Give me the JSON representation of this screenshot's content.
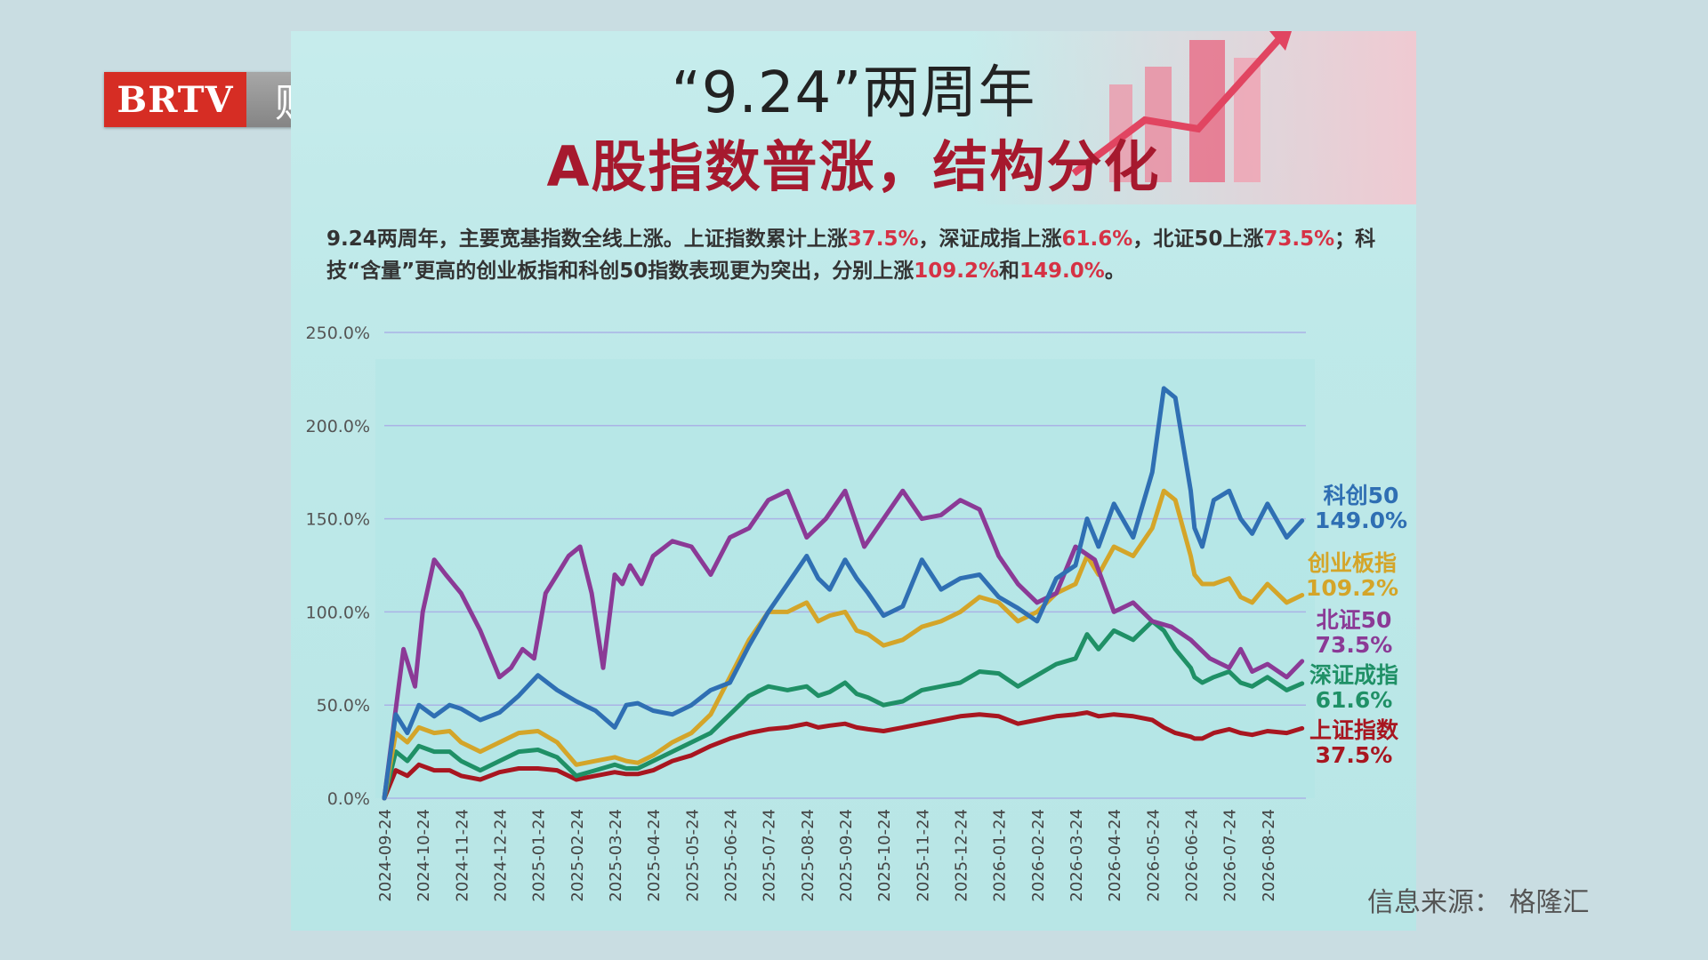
{
  "logo": {
    "brand": "BRTV",
    "channel": "财经"
  },
  "header": {
    "title": "“9.24”两周年",
    "subtitle": "A股指数普涨，结构分化"
  },
  "description": {
    "p1": "9.24两周年，主要宽基指数全线上涨。上证指数累计上涨",
    "v1": "37.5%",
    "p2": "，深证成指上涨",
    "v2": "61.6%",
    "p3": "，北证50上涨",
    "v3": "73.5%",
    "p4": "；科技“含量”更高的创业板指和科创50指数表现更为突出，分别上涨",
    "v4": "109.2%",
    "p5": "和",
    "v5": "149.0%",
    "p6": "。"
  },
  "source": "信息来源：  格隆汇",
  "colors": {
    "kechuang50": "#2f6fb3",
    "chuangye": "#d4a529",
    "beizheng50": "#8b3a96",
    "shenzheng": "#1f9066",
    "shangzheng": "#a81620",
    "grid": "#aab3e6",
    "highlight": "#d63245"
  },
  "chart_data": {
    "type": "line",
    "ylim": [
      0,
      250
    ],
    "yticks": [
      "0.0%",
      "50.0%",
      "100.0%",
      "150.0%",
      "200.0%",
      "250.0%"
    ],
    "x_labels": [
      "2024-09-24",
      "2024-10-24",
      "2024-11-24",
      "2024-12-24",
      "2025-01-24",
      "2025-02-24",
      "2025-03-24",
      "2025-04-24",
      "2025-05-24",
      "2025-06-24",
      "2025-07-24",
      "2025-08-24",
      "2025-09-24",
      "2025-10-24",
      "2025-11-24",
      "2025-12-24",
      "2026-01-24",
      "2026-02-24",
      "2026-03-24",
      "2026-04-24",
      "2026-05-24",
      "2026-06-24",
      "2026-07-24",
      "2026-08-24"
    ],
    "x_index_range": [
      0,
      24
    ],
    "series": [
      {
        "name": "科创50",
        "label": "科创50",
        "value_label": "149.0%",
        "color_key": "kechuang50",
        "x": [
          0,
          0.3,
          0.6,
          0.9,
          1.3,
          1.7,
          2,
          2.5,
          3,
          3.5,
          4,
          4.5,
          5,
          5.5,
          6,
          6.3,
          6.6,
          7,
          7.5,
          8,
          8.5,
          9,
          9.5,
          10,
          10.5,
          11,
          11.3,
          11.6,
          12,
          12.3,
          12.6,
          13,
          13.5,
          14,
          14.5,
          15,
          15.5,
          16,
          16.5,
          17,
          17.5,
          18,
          18.3,
          18.6,
          19,
          19.5,
          20,
          20.3,
          20.6,
          21,
          21.1,
          21.3,
          21.6,
          22,
          22.3,
          22.6,
          23,
          23.5,
          23.9
        ],
        "y": [
          0,
          45,
          35,
          50,
          44,
          50,
          48,
          42,
          46,
          55,
          66,
          58,
          52,
          47,
          38,
          50,
          51,
          47,
          45,
          50,
          58,
          62,
          82,
          100,
          115,
          130,
          118,
          112,
          128,
          118,
          110,
          98,
          103,
          128,
          112,
          118,
          120,
          108,
          102,
          95,
          118,
          125,
          150,
          135,
          158,
          140,
          175,
          220,
          215,
          165,
          145,
          135,
          160,
          165,
          150,
          142,
          158,
          140,
          149
        ]
      },
      {
        "name": "创业板指",
        "label": "创业板指",
        "value_label": "109.2%",
        "color_key": "chuangye",
        "x": [
          0,
          0.3,
          0.6,
          0.9,
          1.3,
          1.7,
          2,
          2.5,
          3,
          3.5,
          4,
          4.5,
          5,
          5.5,
          6,
          6.3,
          6.6,
          7,
          7.5,
          8,
          8.5,
          9,
          9.5,
          10,
          10.5,
          11,
          11.3,
          11.6,
          12,
          12.3,
          12.6,
          13,
          13.5,
          14,
          14.5,
          15,
          15.5,
          16,
          16.5,
          17,
          17.5,
          18,
          18.3,
          18.6,
          19,
          19.5,
          20,
          20.3,
          20.6,
          21,
          21.1,
          21.3,
          21.6,
          22,
          22.3,
          22.6,
          23,
          23.5,
          23.9
        ],
        "y": [
          0,
          35,
          30,
          38,
          35,
          36,
          30,
          25,
          30,
          35,
          36,
          30,
          18,
          20,
          22,
          20,
          19,
          23,
          30,
          35,
          45,
          65,
          85,
          100,
          100,
          105,
          95,
          98,
          100,
          90,
          88,
          82,
          85,
          92,
          95,
          100,
          108,
          105,
          95,
          100,
          110,
          115,
          130,
          120,
          135,
          130,
          145,
          165,
          160,
          130,
          120,
          115,
          115,
          118,
          108,
          105,
          115,
          105,
          109
        ]
      },
      {
        "name": "北证50",
        "label": "北证50",
        "value_label": "73.5%",
        "color_key": "beizheng50",
        "x": [
          0,
          0.25,
          0.5,
          0.8,
          1,
          1.3,
          1.6,
          2,
          2.5,
          3,
          3.3,
          3.6,
          3.9,
          4.2,
          4.5,
          4.8,
          5.1,
          5.4,
          5.7,
          6,
          6.2,
          6.4,
          6.7,
          7,
          7.5,
          8,
          8.5,
          9,
          9.5,
          10,
          10.5,
          11,
          11.5,
          12,
          12.5,
          13,
          13.5,
          14,
          14.5,
          15,
          15.5,
          16,
          16.5,
          17,
          17.5,
          18,
          18.5,
          19,
          19.5,
          20,
          20.5,
          21,
          21.5,
          22,
          22.3,
          22.6,
          23,
          23.5,
          23.9
        ],
        "y": [
          0,
          40,
          80,
          60,
          100,
          128,
          120,
          110,
          90,
          65,
          70,
          80,
          75,
          110,
          120,
          130,
          135,
          110,
          70,
          120,
          115,
          125,
          115,
          130,
          138,
          135,
          120,
          140,
          145,
          160,
          165,
          140,
          150,
          165,
          135,
          150,
          165,
          150,
          152,
          160,
          155,
          130,
          115,
          105,
          110,
          135,
          128,
          100,
          105,
          95,
          92,
          85,
          75,
          70,
          80,
          68,
          72,
          65,
          73.5
        ]
      },
      {
        "name": "深证成指",
        "label": "深证成指",
        "value_label": "61.6%",
        "color_key": "shenzheng",
        "x": [
          0,
          0.3,
          0.6,
          0.9,
          1.3,
          1.7,
          2,
          2.5,
          3,
          3.5,
          4,
          4.5,
          5,
          5.5,
          6,
          6.3,
          6.6,
          7,
          7.5,
          8,
          8.5,
          9,
          9.5,
          10,
          10.5,
          11,
          11.3,
          11.6,
          12,
          12.3,
          12.6,
          13,
          13.5,
          14,
          14.5,
          15,
          15.5,
          16,
          16.5,
          17,
          17.5,
          18,
          18.3,
          18.6,
          19,
          19.5,
          20,
          20.3,
          20.6,
          21,
          21.1,
          21.3,
          21.6,
          22,
          22.3,
          22.6,
          23,
          23.5,
          23.9
        ],
        "y": [
          0,
          25,
          20,
          28,
          25,
          25,
          20,
          15,
          20,
          25,
          26,
          22,
          12,
          15,
          18,
          16,
          16,
          20,
          25,
          30,
          35,
          45,
          55,
          60,
          58,
          60,
          55,
          57,
          62,
          56,
          54,
          50,
          52,
          58,
          60,
          62,
          68,
          67,
          60,
          66,
          72,
          75,
          88,
          80,
          90,
          85,
          95,
          90,
          80,
          70,
          65,
          62,
          65,
          68,
          62,
          60,
          65,
          58,
          61.6
        ]
      },
      {
        "name": "上证指数",
        "label": "上证指数",
        "value_label": "37.5%",
        "color_key": "shangzheng",
        "x": [
          0,
          0.3,
          0.6,
          0.9,
          1.3,
          1.7,
          2,
          2.5,
          3,
          3.5,
          4,
          4.5,
          5,
          5.5,
          6,
          6.3,
          6.6,
          7,
          7.5,
          8,
          8.5,
          9,
          9.5,
          10,
          10.5,
          11,
          11.3,
          11.6,
          12,
          12.3,
          12.6,
          13,
          13.5,
          14,
          14.5,
          15,
          15.5,
          16,
          16.5,
          17,
          17.5,
          18,
          18.3,
          18.6,
          19,
          19.5,
          20,
          20.3,
          20.6,
          21,
          21.1,
          21.3,
          21.6,
          22,
          22.3,
          22.6,
          23,
          23.5,
          23.9
        ],
        "y": [
          0,
          15,
          12,
          18,
          15,
          15,
          12,
          10,
          14,
          16,
          16,
          15,
          10,
          12,
          14,
          13,
          13,
          15,
          20,
          23,
          28,
          32,
          35,
          37,
          38,
          40,
          38,
          39,
          40,
          38,
          37,
          36,
          38,
          40,
          42,
          44,
          45,
          44,
          40,
          42,
          44,
          45,
          46,
          44,
          45,
          44,
          42,
          38,
          35,
          33,
          32,
          32,
          35,
          37,
          35,
          34,
          36,
          35,
          37.5
        ]
      }
    ]
  }
}
